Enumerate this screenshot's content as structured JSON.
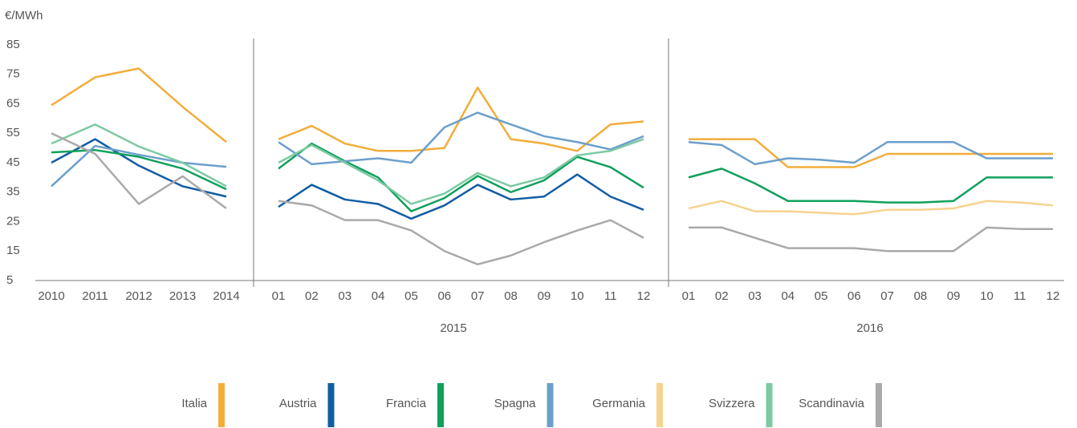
{
  "chart_data": {
    "type": "line",
    "ylabel": "€/MWh",
    "ylim": [
      5,
      85
    ],
    "yticks": [
      5,
      15,
      25,
      35,
      45,
      55,
      65,
      75,
      85
    ],
    "groups": [
      null,
      "2015",
      "2016"
    ],
    "categories": [
      [
        "2010",
        "2011",
        "2012",
        "2013",
        "2014"
      ],
      [
        "01",
        "02",
        "03",
        "04",
        "05",
        "06",
        "07",
        "08",
        "09",
        "10",
        "11",
        "12"
      ],
      [
        "01",
        "02",
        "03",
        "04",
        "05",
        "06",
        "07",
        "08",
        "09",
        "10",
        "11",
        "12"
      ]
    ],
    "series": [
      {
        "name": "Italia",
        "color": "#f2ad3b",
        "values": [
          [
            64.5,
            74,
            77,
            64,
            52
          ],
          [
            53,
            57.5,
            51.5,
            49,
            49,
            50,
            70.5,
            53,
            51.5,
            49,
            58,
            59
          ],
          [
            53,
            53,
            53,
            43.5,
            43.5,
            43.5,
            48,
            48,
            48,
            48,
            48,
            48
          ]
        ]
      },
      {
        "name": "Austria",
        "color": "#125da3",
        "values": [
          [
            45,
            53,
            44,
            37,
            33.5
          ],
          [
            30,
            37.5,
            32.5,
            31,
            26,
            30.5,
            37.5,
            32.5,
            33.5,
            41,
            33.5,
            29
          ],
          null
        ]
      },
      {
        "name": "Francia",
        "color": "#10a05c",
        "values": [
          [
            48.5,
            49.3,
            47,
            43,
            36
          ],
          [
            43,
            51.5,
            45.5,
            40,
            28.5,
            33,
            40.5,
            35,
            39,
            47,
            43.5,
            36.5
          ],
          [
            40,
            43,
            38,
            32,
            32,
            32,
            31.5,
            31.5,
            32,
            40,
            40,
            40
          ]
        ]
      },
      {
        "name": "Spagna",
        "color": "#6c9fcb",
        "values": [
          [
            37,
            50.7,
            47.7,
            45,
            43.6
          ],
          [
            52,
            44.5,
            45.5,
            46.5,
            45,
            57,
            62,
            58,
            54,
            52,
            49.5,
            54
          ],
          [
            52,
            51,
            44.5,
            46.5,
            46,
            45,
            52,
            52,
            52,
            46.5,
            46.5,
            46.5
          ]
        ]
      },
      {
        "name": "Germania",
        "color": "#f6d38f",
        "values": [
          null,
          null,
          [
            29.5,
            32,
            28.5,
            28.5,
            28,
            27.5,
            29,
            29,
            29.5,
            32,
            31.5,
            30.5
          ]
        ]
      },
      {
        "name": "Svizzera",
        "color": "#7ccaa2",
        "values": [
          [
            51.5,
            58,
            50.5,
            45,
            37
          ],
          [
            45,
            51,
            45,
            39,
            31,
            34.5,
            41.5,
            37,
            40,
            47.5,
            49,
            53
          ],
          null
        ]
      },
      {
        "name": "Scandinavia",
        "color": "#a9a9a9",
        "values": [
          [
            55,
            48,
            31,
            40.4,
            29.5
          ],
          [
            32,
            30.5,
            25.5,
            25.5,
            22,
            15,
            10.5,
            13.5,
            18,
            22,
            25.5,
            19.5
          ],
          [
            23,
            23,
            19.5,
            16,
            16,
            16,
            15,
            15,
            15,
            23,
            22.5,
            22.5
          ]
        ]
      }
    ]
  }
}
